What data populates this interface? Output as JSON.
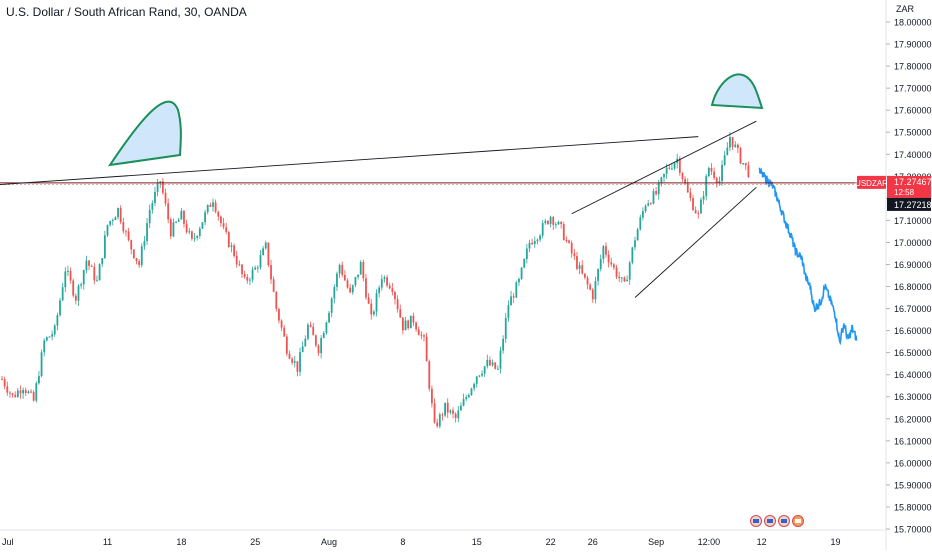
{
  "header": {
    "title": "U.S. Dollar / South African Rand, 30, OANDA",
    "currency": "ZAR"
  },
  "colors": {
    "up": "#26a69a",
    "down": "#ef5350",
    "projection": "#2196f3",
    "shape_fill": "#cfe6fb",
    "shape_stroke": "#1a8f5a",
    "hline": "#7a1c1c",
    "trend": "#131722",
    "price_label": "#f23645",
    "axis_text": "#131722"
  },
  "chart_data": {
    "type": "candlestick",
    "symbol": "USDZAR",
    "yaxis": {
      "min": 15.7,
      "max": 18.0,
      "ticks": [
        "18.00000",
        "17.90000",
        "17.80000",
        "17.70000",
        "17.60000",
        "17.50000",
        "17.40000",
        "17.30000",
        "17.20000",
        "17.10000",
        "17.00000",
        "16.90000",
        "16.80000",
        "16.70000",
        "16.60000",
        "16.50000",
        "16.40000",
        "16.30000",
        "16.20000",
        "16.10000",
        "16.00000",
        "15.90000",
        "15.80000",
        "15.70000"
      ]
    },
    "xaxis": {
      "ticks": [
        {
          "label": "Jul",
          "x": 0
        },
        {
          "label": "11",
          "x": 10
        },
        {
          "label": "18",
          "x": 17
        },
        {
          "label": "25",
          "x": 24
        },
        {
          "label": "Aug",
          "x": 31
        },
        {
          "label": "8",
          "x": 38
        },
        {
          "label": "15",
          "x": 45
        },
        {
          "label": "22",
          "x": 52
        },
        {
          "label": "26",
          "x": 56
        },
        {
          "label": "Sep",
          "x": 62
        },
        {
          "label": "12:00",
          "x": 67
        },
        {
          "label": "12",
          "x": 72
        },
        {
          "label": "19",
          "x": 79
        }
      ]
    },
    "price_path": [
      [
        0,
        16.38
      ],
      [
        1,
        16.3
      ],
      [
        2,
        16.35
      ],
      [
        3,
        16.28
      ],
      [
        4,
        16.55
      ],
      [
        5,
        16.6
      ],
      [
        6,
        16.88
      ],
      [
        7,
        16.75
      ],
      [
        8,
        16.92
      ],
      [
        9,
        16.82
      ],
      [
        10,
        17.08
      ],
      [
        11,
        17.15
      ],
      [
        12,
        17.0
      ],
      [
        13,
        16.9
      ],
      [
        14,
        17.15
      ],
      [
        15,
        17.28
      ],
      [
        16,
        17.05
      ],
      [
        17,
        17.12
      ],
      [
        18,
        17.0
      ],
      [
        19,
        17.1
      ],
      [
        20,
        17.2
      ],
      [
        21,
        17.05
      ],
      [
        22,
        16.95
      ],
      [
        23,
        16.82
      ],
      [
        24,
        16.88
      ],
      [
        25,
        16.98
      ],
      [
        26,
        16.7
      ],
      [
        27,
        16.52
      ],
      [
        28,
        16.43
      ],
      [
        29,
        16.62
      ],
      [
        30,
        16.52
      ],
      [
        31,
        16.7
      ],
      [
        32,
        16.9
      ],
      [
        33,
        16.76
      ],
      [
        34,
        16.9
      ],
      [
        35,
        16.65
      ],
      [
        36,
        16.85
      ],
      [
        37,
        16.8
      ],
      [
        38,
        16.62
      ],
      [
        39,
        16.65
      ],
      [
        40,
        16.55
      ],
      [
        41,
        16.16
      ],
      [
        42,
        16.25
      ],
      [
        43,
        16.2
      ],
      [
        44,
        16.3
      ],
      [
        45,
        16.4
      ],
      [
        46,
        16.45
      ],
      [
        47,
        16.42
      ],
      [
        48,
        16.72
      ],
      [
        49,
        16.82
      ],
      [
        50,
        17.0
      ],
      [
        51,
        17.05
      ],
      [
        52,
        17.12
      ],
      [
        53,
        17.06
      ],
      [
        54,
        16.95
      ],
      [
        55,
        16.85
      ],
      [
        56,
        16.76
      ],
      [
        57,
        16.98
      ],
      [
        58,
        16.88
      ],
      [
        59,
        16.8
      ],
      [
        60,
        17.02
      ],
      [
        61,
        17.18
      ],
      [
        62,
        17.22
      ],
      [
        63,
        17.33
      ],
      [
        64,
        17.38
      ],
      [
        65,
        17.22
      ],
      [
        66,
        17.12
      ],
      [
        67,
        17.34
      ],
      [
        68,
        17.28
      ],
      [
        69,
        17.48
      ],
      [
        70,
        17.38
      ],
      [
        71,
        17.3
      ]
    ],
    "projection_path": [
      [
        71.8,
        17.32
      ],
      [
        72.2,
        17.3
      ],
      [
        73,
        17.26
      ],
      [
        73.5,
        17.2
      ],
      [
        74.2,
        17.1
      ],
      [
        74.8,
        17.03
      ],
      [
        75.2,
        16.96
      ],
      [
        75.8,
        16.93
      ],
      [
        76.2,
        16.84
      ],
      [
        76.6,
        16.8
      ],
      [
        77,
        16.7
      ],
      [
        77.6,
        16.73
      ],
      [
        78,
        16.8
      ],
      [
        78.5,
        16.74
      ],
      [
        79,
        16.67
      ],
      [
        79.4,
        16.55
      ],
      [
        79.8,
        16.63
      ],
      [
        80.2,
        16.56
      ],
      [
        80.6,
        16.61
      ],
      [
        81,
        16.56
      ]
    ],
    "trendlines": [
      {
        "from": [
          -1,
          17.26
        ],
        "to": [
          66,
          17.48
        ]
      },
      {
        "from": [
          54,
          17.13
        ],
        "to": [
          71.5,
          17.55
        ]
      },
      {
        "from": [
          60,
          16.75
        ],
        "to": [
          71.5,
          17.25
        ]
      }
    ],
    "horizontal_line": 17.27,
    "last_price_label": {
      "symbol": "USDZAR",
      "price": "17.27467",
      "countdown": "12:58"
    },
    "secondary_price_label": "17.27218"
  }
}
